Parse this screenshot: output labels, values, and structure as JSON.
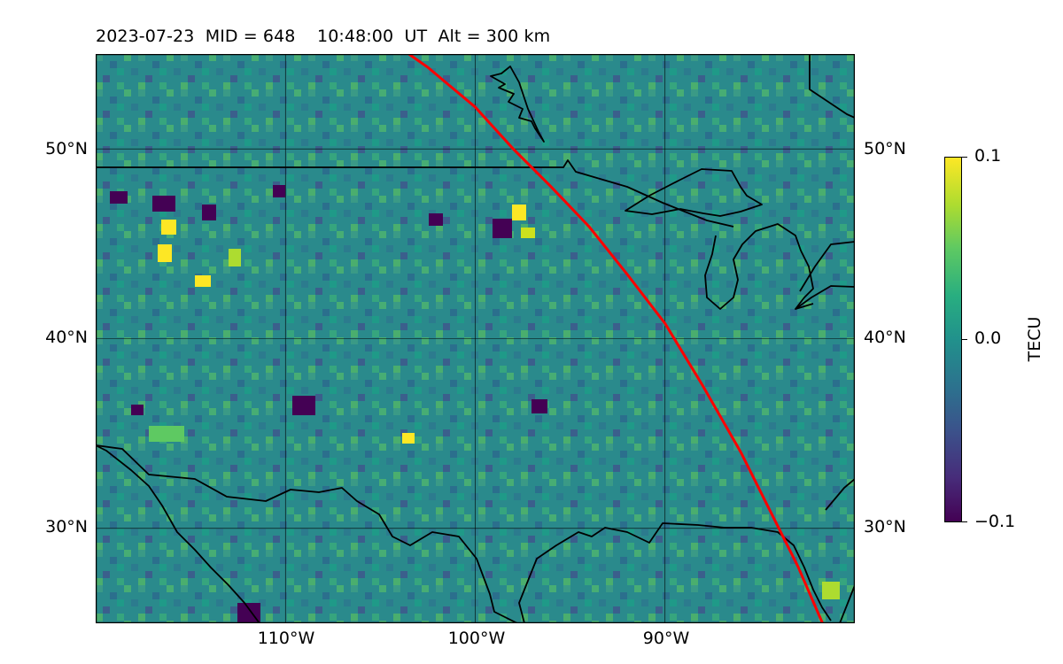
{
  "title": "2023-07-23  MID = 648    10:48:00  UT  Alt = 300 km",
  "map": {
    "lon_range": [
      -120,
      -80
    ],
    "lat_range": [
      25,
      55
    ],
    "grid_lines": true,
    "lat_ticks": [
      {
        "value": 50,
        "label": "50°N"
      },
      {
        "value": 40,
        "label": "40°N"
      },
      {
        "value": 30,
        "label": "30°N"
      }
    ],
    "lon_ticks": [
      {
        "value": -110,
        "label": "110°W"
      },
      {
        "value": -100,
        "label": "100°W"
      },
      {
        "value": -90,
        "label": "90°W"
      }
    ],
    "features": [
      "coastlines",
      "country borders",
      "Great Lakes",
      "terminator line"
    ],
    "terminator_color": "#ff0000",
    "terminator_path": [
      [
        -103.5,
        55
      ],
      [
        -102.5,
        54.3
      ],
      [
        -100,
        52.2
      ],
      [
        -98,
        50
      ],
      [
        -96,
        48
      ],
      [
        -94,
        45.9
      ],
      [
        -92,
        43.4
      ],
      [
        -90,
        40.8
      ],
      [
        -88,
        37.5
      ],
      [
        -86,
        34
      ],
      [
        -84.5,
        31
      ],
      [
        -83,
        28
      ],
      [
        -81.7,
        25
      ]
    ]
  },
  "colorbar": {
    "label": "TECU",
    "min": -0.1,
    "max": 0.1,
    "colormap": "viridis",
    "ticks": [
      {
        "value": 0.1,
        "label": "0.1"
      },
      {
        "value": 0.0,
        "label": "0.0"
      },
      {
        "value": -0.1,
        "label": "−0.1"
      }
    ]
  }
}
